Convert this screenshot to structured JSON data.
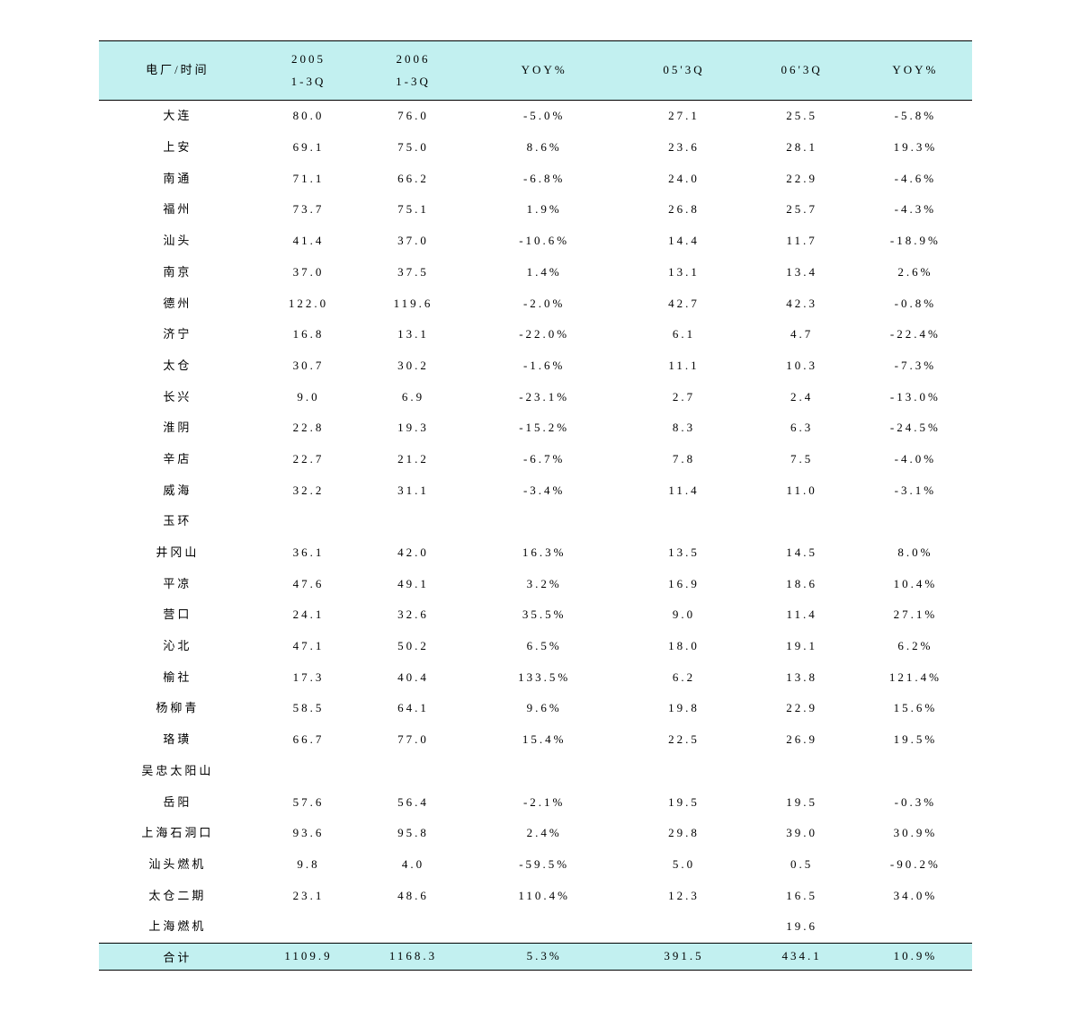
{
  "table": {
    "headers": {
      "name": "电厂/时间",
      "period1_line1": "2005",
      "period1_line2": "1-3Q",
      "period2_line1": "2006",
      "period2_line2": "1-3Q",
      "yoy1": "YOY%",
      "q05": "05'3Q",
      "q06": "06'3Q",
      "yoy2": "YOY%"
    },
    "rows": [
      {
        "name": "大连",
        "v1": "80.0",
        "v2": "76.0",
        "yoy1": "-5.0%",
        "v3": "27.1",
        "v4": "25.5",
        "yoy2": "-5.8%"
      },
      {
        "name": "上安",
        "v1": "69.1",
        "v2": "75.0",
        "yoy1": "8.6%",
        "v3": "23.6",
        "v4": "28.1",
        "yoy2": "19.3%"
      },
      {
        "name": "南通",
        "v1": "71.1",
        "v2": "66.2",
        "yoy1": "-6.8%",
        "v3": "24.0",
        "v4": "22.9",
        "yoy2": "-4.6%"
      },
      {
        "name": "福州",
        "v1": "73.7",
        "v2": "75.1",
        "yoy1": "1.9%",
        "v3": "26.8",
        "v4": "25.7",
        "yoy2": "-4.3%"
      },
      {
        "name": "汕头",
        "v1": "41.4",
        "v2": "37.0",
        "yoy1": "-10.6%",
        "v3": "14.4",
        "v4": "11.7",
        "yoy2": "-18.9%"
      },
      {
        "name": "南京",
        "v1": "37.0",
        "v2": "37.5",
        "yoy1": "1.4%",
        "v3": "13.1",
        "v4": "13.4",
        "yoy2": "2.6%"
      },
      {
        "name": "德州",
        "v1": "122.0",
        "v2": "119.6",
        "yoy1": "-2.0%",
        "v3": "42.7",
        "v4": "42.3",
        "yoy2": "-0.8%"
      },
      {
        "name": "济宁",
        "v1": "16.8",
        "v2": "13.1",
        "yoy1": "-22.0%",
        "v3": "6.1",
        "v4": "4.7",
        "yoy2": "-22.4%"
      },
      {
        "name": "太仓",
        "v1": "30.7",
        "v2": "30.2",
        "yoy1": "-1.6%",
        "v3": "11.1",
        "v4": "10.3",
        "yoy2": "-7.3%"
      },
      {
        "name": "长兴",
        "v1": "9.0",
        "v2": "6.9",
        "yoy1": "-23.1%",
        "v3": "2.7",
        "v4": "2.4",
        "yoy2": "-13.0%"
      },
      {
        "name": "淮阴",
        "v1": "22.8",
        "v2": "19.3",
        "yoy1": "-15.2%",
        "v3": "8.3",
        "v4": "6.3",
        "yoy2": "-24.5%"
      },
      {
        "name": "辛店",
        "v1": "22.7",
        "v2": "21.2",
        "yoy1": "-6.7%",
        "v3": "7.8",
        "v4": "7.5",
        "yoy2": "-4.0%"
      },
      {
        "name": "威海",
        "v1": "32.2",
        "v2": "31.1",
        "yoy1": "-3.4%",
        "v3": "11.4",
        "v4": "11.0",
        "yoy2": "-3.1%"
      },
      {
        "name": "玉环",
        "v1": "",
        "v2": "",
        "yoy1": "",
        "v3": "",
        "v4": "",
        "yoy2": ""
      },
      {
        "name": "井冈山",
        "v1": "36.1",
        "v2": "42.0",
        "yoy1": "16.3%",
        "v3": "13.5",
        "v4": "14.5",
        "yoy2": "8.0%"
      },
      {
        "name": "平凉",
        "v1": "47.6",
        "v2": "49.1",
        "yoy1": "3.2%",
        "v3": "16.9",
        "v4": "18.6",
        "yoy2": "10.4%"
      },
      {
        "name": "营口",
        "v1": "24.1",
        "v2": "32.6",
        "yoy1": "35.5%",
        "v3": "9.0",
        "v4": "11.4",
        "yoy2": "27.1%"
      },
      {
        "name": "沁北",
        "v1": "47.1",
        "v2": "50.2",
        "yoy1": "6.5%",
        "v3": "18.0",
        "v4": "19.1",
        "yoy2": "6.2%"
      },
      {
        "name": "榆社",
        "v1": "17.3",
        "v2": "40.4",
        "yoy1": "133.5%",
        "v3": "6.2",
        "v4": "13.8",
        "yoy2": "121.4%"
      },
      {
        "name": "杨柳青",
        "v1": "58.5",
        "v2": "64.1",
        "yoy1": "9.6%",
        "v3": "19.8",
        "v4": "22.9",
        "yoy2": "15.6%"
      },
      {
        "name": "珞璜",
        "v1": "66.7",
        "v2": "77.0",
        "yoy1": "15.4%",
        "v3": "22.5",
        "v4": "26.9",
        "yoy2": "19.5%"
      },
      {
        "name": "吴忠太阳山",
        "v1": "",
        "v2": "",
        "yoy1": "",
        "v3": "",
        "v4": "",
        "yoy2": ""
      },
      {
        "name": "岳阳",
        "v1": "57.6",
        "v2": "56.4",
        "yoy1": "-2.1%",
        "v3": "19.5",
        "v4": "19.5",
        "yoy2": "-0.3%"
      },
      {
        "name": "上海石洞口",
        "v1": "93.6",
        "v2": "95.8",
        "yoy1": "2.4%",
        "v3": "29.8",
        "v4": "39.0",
        "yoy2": "30.9%"
      },
      {
        "name": "汕头燃机",
        "v1": "9.8",
        "v2": "4.0",
        "yoy1": "-59.5%",
        "v3": "5.0",
        "v4": "0.5",
        "yoy2": "-90.2%"
      },
      {
        "name": "太仓二期",
        "v1": "23.1",
        "v2": "48.6",
        "yoy1": "110.4%",
        "v3": "12.3",
        "v4": "16.5",
        "yoy2": "34.0%"
      },
      {
        "name": "上海燃机",
        "v1": "",
        "v2": "",
        "yoy1": "",
        "v3": "",
        "v4": "19.6",
        "yoy2": ""
      }
    ],
    "footer": {
      "name": "合计",
      "v1": "1109.9",
      "v2": "1168.3",
      "yoy1": "5.3%",
      "v3": "391.5",
      "v4": "434.1",
      "yoy2": "10.9%"
    },
    "colors": {
      "header_bg": "#c2f0f0",
      "footer_bg": "#c2f0f0",
      "border": "#000000",
      "text": "#000000",
      "background": "#ffffff"
    }
  }
}
